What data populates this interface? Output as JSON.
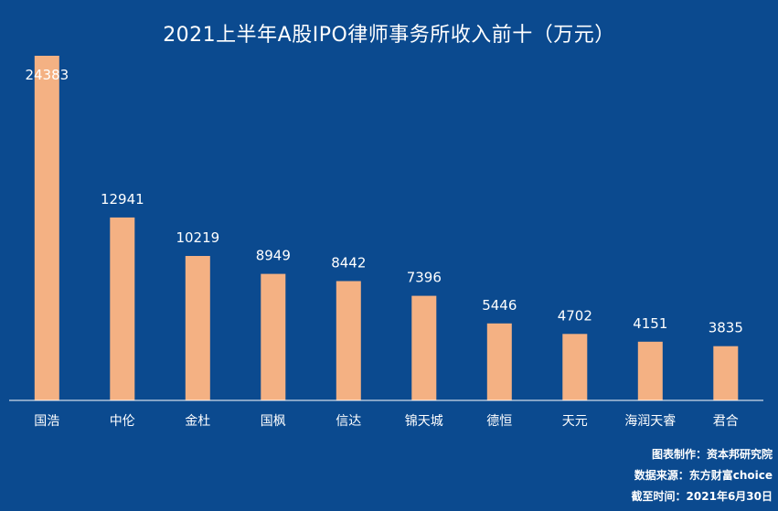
{
  "chart_data": {
    "type": "bar",
    "title": "2021上半年A股IPO律师事务所收入前十（万元）",
    "categories": [
      "国浩",
      "中伦",
      "金杜",
      "国枫",
      "信达",
      "锦天城",
      "德恒",
      "天元",
      "海润天睿",
      "君合"
    ],
    "values": [
      24383,
      12941,
      10219,
      8949,
      8442,
      7396,
      5446,
      4702,
      4151,
      3835
    ],
    "data_labels": [
      "24383",
      "12941",
      "10219",
      "8949",
      "8442",
      "7396",
      "5446",
      "4702",
      "4151",
      "3835"
    ],
    "ylim": [
      0,
      24383
    ],
    "grid": false,
    "xlabel": "",
    "ylabel": ""
  },
  "colors": {
    "background": "#0b4a8f",
    "bar": "#f4b183",
    "text": "#ffffff",
    "axis": "#ffffff"
  },
  "credits": {
    "made_by": "图表制作：资本邦研究院",
    "source": "数据来源：东方财富choice",
    "as_of": "截至时间：2021年6月30日"
  }
}
